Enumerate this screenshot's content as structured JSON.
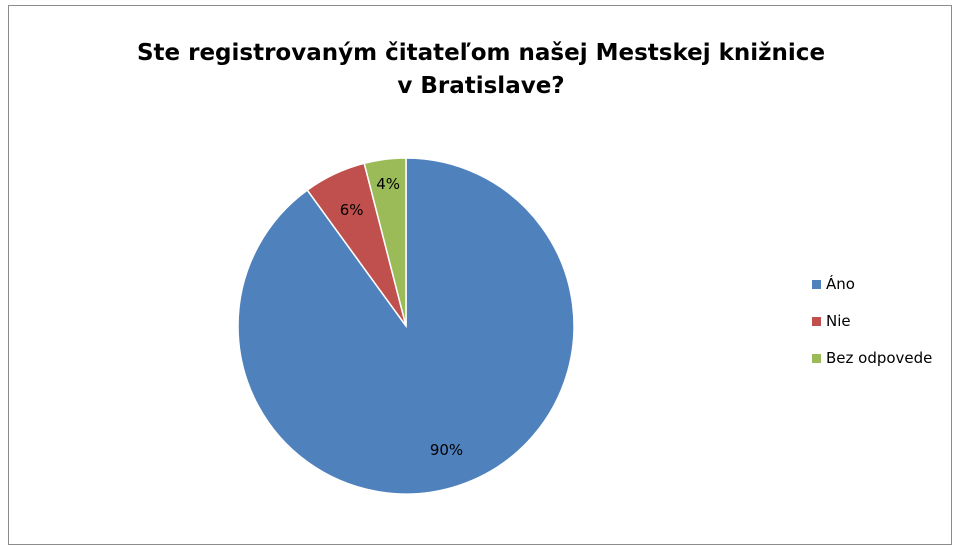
{
  "chart_data": {
    "type": "pie",
    "title_lines": [
      "Ste registrovaným čitateľom našej Mestskej knižnice",
      "v Bratislave?"
    ],
    "categories": [
      "Áno",
      "Nie",
      "Bez odpovede"
    ],
    "values": [
      90,
      6,
      4
    ],
    "data_labels": [
      "90%",
      "6%",
      "4%"
    ],
    "colors": [
      "#4f81bd",
      "#c0504d",
      "#9bbb59"
    ],
    "legend_position": "right",
    "start_angle": "12 o'clock",
    "direction": "clockwise"
  }
}
